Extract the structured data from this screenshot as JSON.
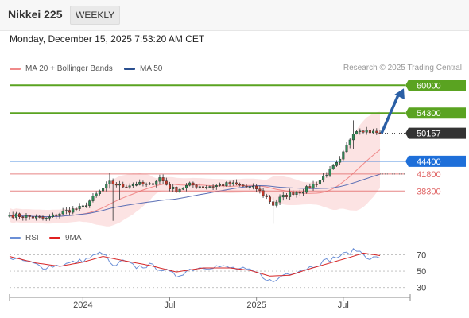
{
  "header": {
    "title": "Nikkei 225",
    "timeframe": "WEEKLY"
  },
  "datetime": "Monday, December 15, 2025 7:53:20 AM CET",
  "credit": "Research © 2025 Trading Central",
  "colors": {
    "green": "#5aa321",
    "blue": "#1e6fd9",
    "red": "#e06666",
    "dark": "#333333",
    "arrow": "#2a5fa5",
    "band": "#fbdada",
    "ma20": "#f08a8a",
    "ma50": "#5b6fb5",
    "rsi": "#6b8fd6",
    "rsi_ma": "#d62728"
  },
  "chart_data": [
    {
      "type": "candlestick",
      "title": "",
      "legend": [
        {
          "name": "MA 20 + Bollinger Bands",
          "color": "#f08a8a"
        },
        {
          "name": "MA 50",
          "color": "#2a4f8f"
        }
      ],
      "x_ticks": [
        "2024",
        "Jul",
        "2025",
        "Jul"
      ],
      "ylim": [
        31500,
        62000
      ],
      "last_price": 50157,
      "levels": [
        {
          "value": 60000,
          "label": "60000",
          "style": "resistance",
          "color": "#5aa321"
        },
        {
          "value": 54300,
          "label": "54300",
          "style": "resistance",
          "color": "#5aa321"
        },
        {
          "value": 50157,
          "label": "50157",
          "style": "last",
          "color": "#333333"
        },
        {
          "value": 44400,
          "label": "44400",
          "style": "pivot",
          "color": "#1e6fd9"
        },
        {
          "value": 41800,
          "label": "41800",
          "style": "support",
          "color": "#e06666"
        },
        {
          "value": 38300,
          "label": "38300",
          "style": "support",
          "color": "#e06666"
        }
      ],
      "forecast_arrow": {
        "from": 50157,
        "to": 60000
      },
      "anchors": [
        {
          "i": 0,
          "v": 33400
        },
        {
          "i": 6,
          "v": 33000
        },
        {
          "i": 11,
          "v": 32600
        },
        {
          "i": 16,
          "v": 34000
        },
        {
          "i": 22,
          "v": 35000
        },
        {
          "i": 27,
          "v": 38200
        },
        {
          "i": 30,
          "v": 40000
        },
        {
          "i": 34,
          "v": 39300
        },
        {
          "i": 38,
          "v": 39800
        },
        {
          "i": 42,
          "v": 39500
        },
        {
          "i": 45,
          "v": 41000
        },
        {
          "i": 48,
          "v": 39000
        },
        {
          "i": 50,
          "v": 38500
        },
        {
          "i": 54,
          "v": 39600
        },
        {
          "i": 58,
          "v": 39200
        },
        {
          "i": 62,
          "v": 39400
        },
        {
          "i": 66,
          "v": 39800
        },
        {
          "i": 70,
          "v": 39300
        },
        {
          "i": 74,
          "v": 38800
        },
        {
          "i": 77,
          "v": 37000
        },
        {
          "i": 79,
          "v": 35500
        },
        {
          "i": 81,
          "v": 36800
        },
        {
          "i": 84,
          "v": 37800
        },
        {
          "i": 88,
          "v": 38400
        },
        {
          "i": 92,
          "v": 40000
        },
        {
          "i": 96,
          "v": 42500
        },
        {
          "i": 99,
          "v": 44500
        },
        {
          "i": 101,
          "v": 47500
        },
        {
          "i": 103,
          "v": 50500
        },
        {
          "i": 105,
          "v": 51000
        },
        {
          "i": 108,
          "v": 50500
        },
        {
          "i": 111,
          "v": 50157
        }
      ],
      "spikes": [
        {
          "i": 30,
          "low": 38800,
          "high": 42000
        },
        {
          "i": 31,
          "low": 32200,
          "high": 40500
        },
        {
          "i": 33,
          "low": 36600,
          "high": 40000
        },
        {
          "i": 79,
          "low": 31600,
          "high": 37000
        },
        {
          "i": 103,
          "low": 47000,
          "high": 52800
        }
      ]
    },
    {
      "type": "line",
      "title": "",
      "legend": [
        {
          "name": "RSI",
          "color": "#6b8fd6"
        },
        {
          "name": "9MA",
          "color": "#d62728"
        }
      ],
      "ylim": [
        20,
        85
      ],
      "y_ticks": [
        70,
        50,
        30
      ],
      "rsi_anchors": [
        {
          "i": 0,
          "v": 66
        },
        {
          "i": 5,
          "v": 62
        },
        {
          "i": 10,
          "v": 55
        },
        {
          "i": 16,
          "v": 58
        },
        {
          "i": 22,
          "v": 63
        },
        {
          "i": 28,
          "v": 73
        },
        {
          "i": 31,
          "v": 55
        },
        {
          "i": 34,
          "v": 62
        },
        {
          "i": 38,
          "v": 55
        },
        {
          "i": 42,
          "v": 57
        },
        {
          "i": 46,
          "v": 52
        },
        {
          "i": 50,
          "v": 44
        },
        {
          "i": 54,
          "v": 52
        },
        {
          "i": 58,
          "v": 55
        },
        {
          "i": 62,
          "v": 56
        },
        {
          "i": 66,
          "v": 54
        },
        {
          "i": 70,
          "v": 52
        },
        {
          "i": 74,
          "v": 48
        },
        {
          "i": 77,
          "v": 41
        },
        {
          "i": 79,
          "v": 36
        },
        {
          "i": 82,
          "v": 46
        },
        {
          "i": 86,
          "v": 50
        },
        {
          "i": 90,
          "v": 55
        },
        {
          "i": 95,
          "v": 63
        },
        {
          "i": 100,
          "v": 70
        },
        {
          "i": 104,
          "v": 76
        },
        {
          "i": 106,
          "v": 71
        },
        {
          "i": 108,
          "v": 66
        },
        {
          "i": 111,
          "v": 66
        }
      ],
      "ma_anchors": [
        {
          "i": 0,
          "v": 68
        },
        {
          "i": 8,
          "v": 60
        },
        {
          "i": 15,
          "v": 56
        },
        {
          "i": 22,
          "v": 61
        },
        {
          "i": 28,
          "v": 68
        },
        {
          "i": 34,
          "v": 63
        },
        {
          "i": 42,
          "v": 57
        },
        {
          "i": 50,
          "v": 49
        },
        {
          "i": 58,
          "v": 54
        },
        {
          "i": 66,
          "v": 54
        },
        {
          "i": 72,
          "v": 51
        },
        {
          "i": 78,
          "v": 44
        },
        {
          "i": 84,
          "v": 45
        },
        {
          "i": 90,
          "v": 53
        },
        {
          "i": 96,
          "v": 60
        },
        {
          "i": 102,
          "v": 67
        },
        {
          "i": 106,
          "v": 72
        },
        {
          "i": 111,
          "v": 69
        }
      ]
    }
  ]
}
